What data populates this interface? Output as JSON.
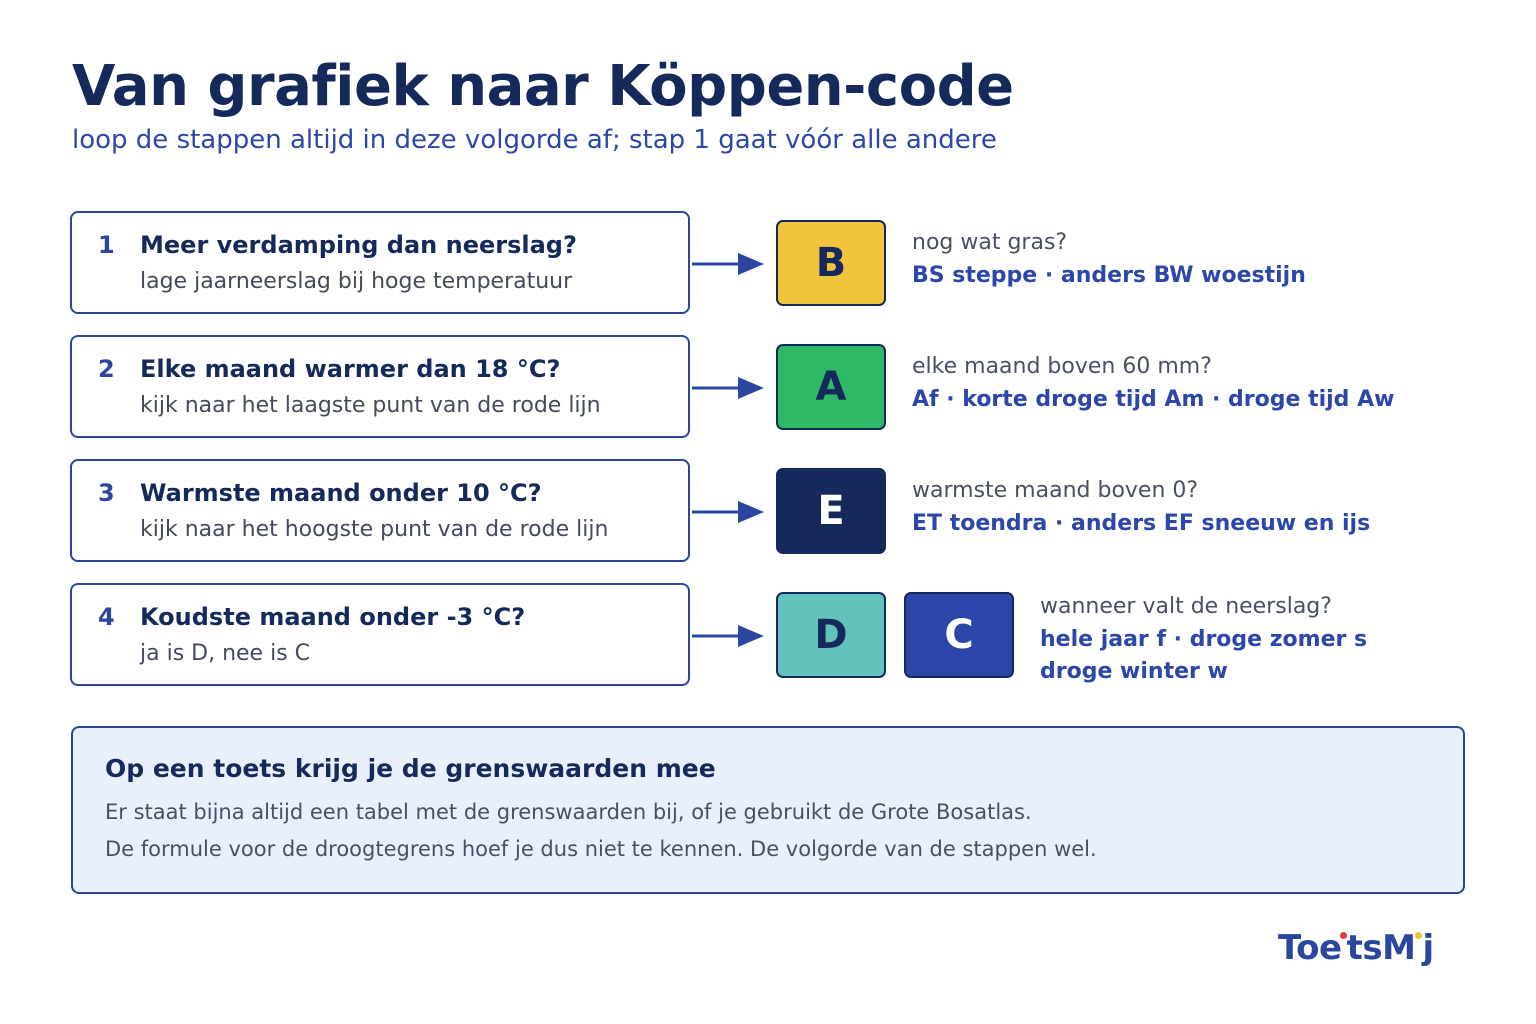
{
  "title": "Van grafiek naar Köppen-code",
  "subtitle": "loop de stappen altijd in deze volgorde af; stap 1 gaat vóór alle andere",
  "steps": [
    {
      "number": "1",
      "question": "Meer verdamping dan neerslag?",
      "hint": "lage jaarneerslag bij hoge temperatuur"
    },
    {
      "number": "2",
      "question": "Elke maand warmer dan 18 °C?",
      "hint": "kijk naar het laagste punt van de rode lijn"
    },
    {
      "number": "3",
      "question": "Warmste maand onder 10 °C?",
      "hint": "kijk naar het hoogste punt van de rode lijn"
    },
    {
      "number": "4",
      "question": "Koudste maand onder -3 °C?",
      "hint": "ja is D, nee is C"
    }
  ],
  "outcomes": [
    {
      "codes": [
        {
          "letter": "B",
          "color": "#f2c43c",
          "text_color": "#15295a"
        }
      ],
      "question": "nog wat gras?",
      "answer": [
        "BS steppe · anders BW woestijn"
      ]
    },
    {
      "codes": [
        {
          "letter": "A",
          "color": "#2fb866",
          "text_color": "#15295a"
        }
      ],
      "question": "elke maand boven 60 mm?",
      "answer": [
        "Af · korte droge tijd Am · droge tijd Aw"
      ]
    },
    {
      "codes": [
        {
          "letter": "E",
          "color": "#15295a",
          "text_color": "#ffffff"
        }
      ],
      "question": "warmste maand boven 0?",
      "answer": [
        "ET toendra · anders EF sneeuw en ijs"
      ]
    },
    {
      "codes": [
        {
          "letter": "D",
          "color": "#62c3bd",
          "text_color": "#15295a"
        },
        {
          "letter": "C",
          "color": "#2b46a8",
          "text_color": "#ffffff"
        }
      ],
      "question": "wanneer valt de neerslag?",
      "answer": [
        "hele jaar f · droge zomer s",
        "droge winter w"
      ]
    }
  ],
  "note": {
    "title": "Op een toets krijg je de grenswaarden mee",
    "lines": [
      "Er staat bijna altijd een tabel met de grenswaarden bij, of je gebruikt de Grote Bosatlas.",
      "De formule voor de droogtegrens hoef je dus niet te kennen. De volgorde van de stappen wel."
    ]
  },
  "logo": {
    "text_a": "To",
    "text_b": "e",
    "text_c": "tsM",
    "text_d": "j"
  }
}
